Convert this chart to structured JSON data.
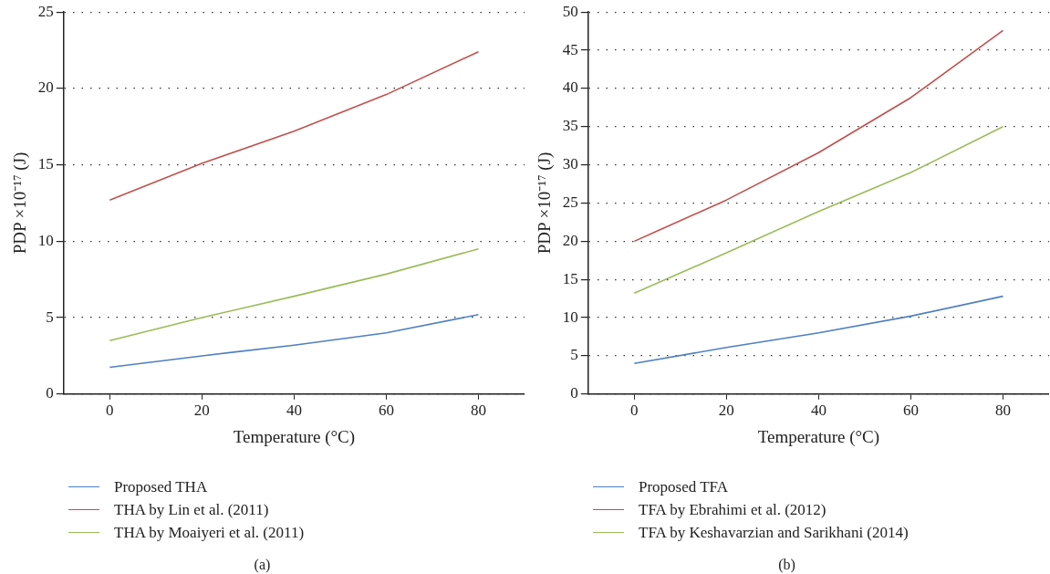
{
  "chart_data": [
    {
      "type": "line",
      "xlabel": "Temperature (°C)",
      "ylabel": "PDP ×10⁻¹⁷ (J)",
      "x": [
        0,
        20,
        40,
        60,
        80
      ],
      "xlim": [
        -10,
        90
      ],
      "xticks": [
        0,
        20,
        40,
        60,
        80
      ],
      "ylim": [
        0,
        25
      ],
      "yticks": [
        0,
        5,
        10,
        15,
        20,
        25
      ],
      "grid": "y",
      "legend": "bottom",
      "marker": "none",
      "line_style": "solid",
      "annotations": [
        "(a)"
      ],
      "series": [
        {
          "name": "Proposed THA",
          "color": "#4f7fc2",
          "values": [
            1.75,
            2.5,
            3.2,
            4.0,
            5.2
          ]
        },
        {
          "name": "THA by Lin et al. (2011)",
          "color": "#c0504d",
          "values": [
            12.7,
            15.1,
            17.2,
            19.6,
            22.4
          ]
        },
        {
          "name": "THA by Moaiyeri et al. (2011)",
          "color": "#9bbb59",
          "values": [
            3.5,
            5.0,
            6.4,
            7.85,
            9.5
          ]
        }
      ]
    },
    {
      "type": "line",
      "xlabel": "Temperature (°C)",
      "ylabel": "PDP ×10⁻¹⁷ (J)",
      "x": [
        0,
        20,
        40,
        60,
        80
      ],
      "xlim": [
        -10,
        90
      ],
      "xticks": [
        0,
        20,
        40,
        60,
        80
      ],
      "ylim": [
        0,
        50
      ],
      "yticks": [
        0,
        5,
        10,
        15,
        20,
        25,
        30,
        35,
        40,
        45,
        50
      ],
      "grid": "y",
      "legend": "bottom",
      "marker": "none",
      "line_style": "solid",
      "annotations": [
        "(b)"
      ],
      "series": [
        {
          "name": "Proposed TFA",
          "color": "#4f7fc2",
          "values": [
            4.0,
            6.1,
            8.0,
            10.2,
            12.8
          ]
        },
        {
          "name": "TFA by Ebrahimi et al. (2012)",
          "color": "#c0504d",
          "values": [
            20.0,
            25.4,
            31.6,
            38.8,
            47.6
          ]
        },
        {
          "name": "TFA by Keshavarzian and Sarikhani (2014)",
          "color": "#9bbb59",
          "values": [
            13.2,
            18.5,
            23.9,
            29.0,
            35.0
          ]
        }
      ]
    }
  ]
}
